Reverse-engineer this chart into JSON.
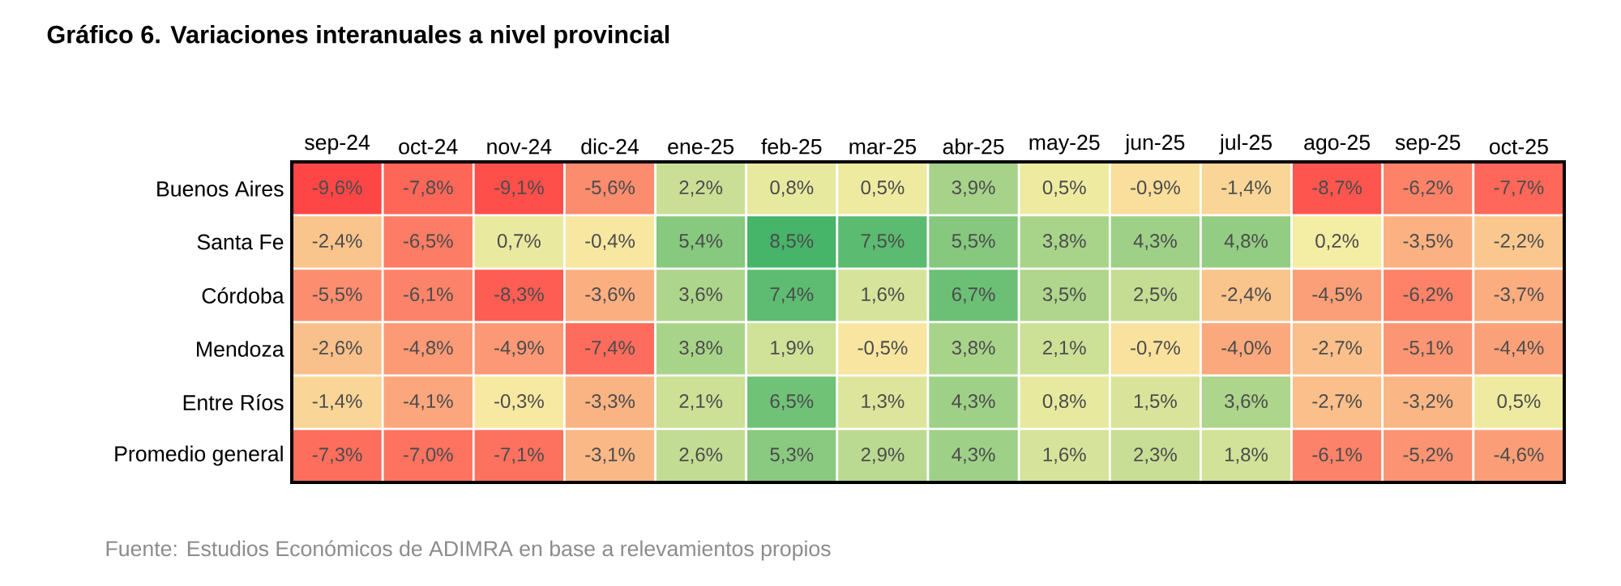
{
  "chart_data": {
    "type": "heatmap",
    "title": "Gráfico 6. Variaciones interanuales a nivel provincial",
    "categories": [
      "sep-24",
      "oct-24",
      "nov-24",
      "dic-24",
      "ene-25",
      "feb-25",
      "mar-25",
      "abr-25",
      "may-25",
      "jun-25",
      "jul-25",
      "ago-25",
      "sep-25",
      "oct-25"
    ],
    "y_categories": [
      "Buenos Aires",
      "Santa Fe",
      "Córdoba",
      "Mendoza",
      "Entre Ríos",
      "Promedio general"
    ],
    "cells": [
      [
        -9.6,
        -7.8,
        -9.1,
        -5.6,
        2.2,
        0.8,
        0.5,
        3.9,
        0.5,
        -0.9,
        -1.4,
        -8.7,
        -6.2,
        -7.7
      ],
      [
        -2.4,
        -6.5,
        0.7,
        -0.4,
        5.4,
        8.5,
        7.5,
        5.5,
        3.8,
        4.3,
        4.8,
        0.2,
        -3.5,
        -2.2
      ],
      [
        -5.5,
        -6.1,
        -8.3,
        -3.6,
        3.6,
        7.4,
        1.6,
        6.7,
        3.5,
        2.5,
        -2.4,
        -4.5,
        -6.2,
        -3.7
      ],
      [
        -2.6,
        -4.8,
        -4.9,
        -7.4,
        3.8,
        1.9,
        -0.5,
        3.8,
        2.1,
        -0.7,
        -4.0,
        -2.7,
        -5.1,
        -4.4
      ],
      [
        -1.4,
        -4.1,
        -0.3,
        -3.3,
        2.1,
        6.5,
        1.3,
        4.3,
        0.8,
        1.5,
        3.6,
        -2.7,
        -3.2,
        0.5
      ],
      [
        -7.3,
        -7.0,
        -7.1,
        -3.1,
        2.6,
        5.3,
        2.9,
        4.3,
        1.6,
        2.3,
        1.8,
        -6.1,
        -5.2,
        -4.6
      ]
    ],
    "cell_labels": [
      [
        "-9,6%",
        "-7,8%",
        "-9,1%",
        "-5,6%",
        "2,2%",
        "0,8%",
        "0,5%",
        "3,9%",
        "0,5%",
        "-0,9%",
        "-1,4%",
        "-8,7%",
        "-6,2%",
        "-7,7%"
      ],
      [
        "-2,4%",
        "-6,5%",
        "0,7%",
        "-0,4%",
        "5,4%",
        "8,5%",
        "7,5%",
        "5,5%",
        "3,8%",
        "4,3%",
        "4,8%",
        "0,2%",
        "-3,5%",
        "-2,2%"
      ],
      [
        "-5,5%",
        "-6,1%",
        "-8,3%",
        "-3,6%",
        "3,6%",
        "7,4%",
        "1,6%",
        "6,7%",
        "3,5%",
        "2,5%",
        "-2,4%",
        "-4,5%",
        "-6,2%",
        "-3,7%"
      ],
      [
        "-2,6%",
        "-4,8%",
        "-4,9%",
        "-7,4%",
        "3,8%",
        "1,9%",
        "-0,5%",
        "3,8%",
        "2,1%",
        "-0,7%",
        "-4,0%",
        "-2,7%",
        "-5,1%",
        "-4,4%"
      ],
      [
        "-1,4%",
        "-4,1%",
        "-0,3%",
        "-3,3%",
        "2,1%",
        "6,5%",
        "1,3%",
        "4,3%",
        "0,8%",
        "1,5%",
        "3,6%",
        "-2,7%",
        "-3,2%",
        "0,5%"
      ],
      [
        "-7,3%",
        "-7,0%",
        "-7,1%",
        "-3,1%",
        "2,6%",
        "5,3%",
        "2,9%",
        "4,3%",
        "1,6%",
        "2,3%",
        "1,8%",
        "-6,1%",
        "-5,2%",
        "-4,6%"
      ]
    ],
    "annotations": [
      "Fuente: Estudios Económicos de ADIMRA en base a relevamientos propios"
    ]
  }
}
